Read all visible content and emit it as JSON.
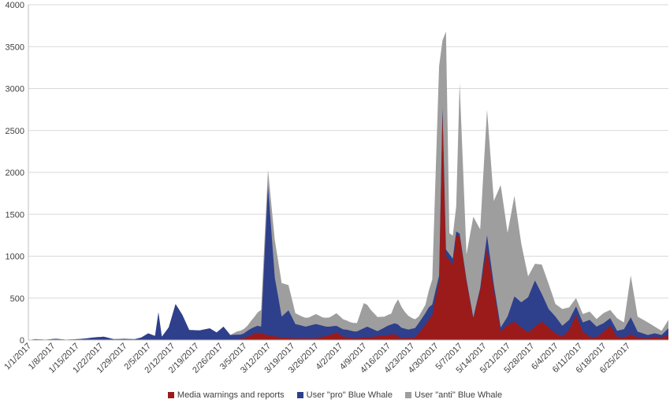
{
  "chart_data": {
    "type": "area",
    "stacked": true,
    "ylim": [
      0,
      4000
    ],
    "yticks": [
      0,
      500,
      1000,
      1500,
      2000,
      2500,
      3000,
      3500,
      4000
    ],
    "xlim": [
      "2017-01-01",
      "2017-07-07"
    ],
    "xtick_labels": [
      "1/1/2017",
      "1/8/2017",
      "1/15/2017",
      "1/22/2017",
      "1/29/2017",
      "2/5/2017",
      "2/12/2017",
      "2/19/2017",
      "2/26/2017",
      "3/5/2017",
      "3/12/2017",
      "3/19/2017",
      "3/26/2017",
      "4/2/2017",
      "4/9/2017",
      "4/16/2017",
      "4/23/2017",
      "4/30/2017",
      "5/7/2017",
      "5/14/2017",
      "5/21/2017",
      "5/28/2017",
      "6/4/2017",
      "6/11/2017",
      "6/18/2017",
      "6/25/2017"
    ],
    "xtick_dates": [
      "2017-01-01",
      "2017-01-08",
      "2017-01-15",
      "2017-01-22",
      "2017-01-29",
      "2017-02-05",
      "2017-02-12",
      "2017-02-19",
      "2017-02-26",
      "2017-03-05",
      "2017-03-12",
      "2017-03-19",
      "2017-03-26",
      "2017-04-02",
      "2017-04-09",
      "2017-04-16",
      "2017-04-23",
      "2017-04-30",
      "2017-05-07",
      "2017-05-14",
      "2017-05-21",
      "2017-05-28",
      "2017-06-04",
      "2017-06-11",
      "2017-06-18",
      "2017-06-25"
    ],
    "grid": "horizontal",
    "legend_position": "bottom",
    "series": [
      {
        "name": "Media warnings and reports",
        "color": "#9b1b1b",
        "points": [
          [
            "2017-01-01",
            0
          ],
          [
            "2017-03-01",
            0
          ],
          [
            "2017-03-05",
            20
          ],
          [
            "2017-03-07",
            60
          ],
          [
            "2017-03-09",
            90
          ],
          [
            "2017-03-12",
            60
          ],
          [
            "2017-03-16",
            30
          ],
          [
            "2017-03-20",
            20
          ],
          [
            "2017-03-26",
            20
          ],
          [
            "2017-03-30",
            60
          ],
          [
            "2017-04-01",
            90
          ],
          [
            "2017-04-03",
            40
          ],
          [
            "2017-04-06",
            20
          ],
          [
            "2017-04-10",
            30
          ],
          [
            "2017-04-16",
            60
          ],
          [
            "2017-04-18",
            70
          ],
          [
            "2017-04-20",
            20
          ],
          [
            "2017-04-24",
            30
          ],
          [
            "2017-04-27",
            180
          ],
          [
            "2017-04-29",
            300
          ],
          [
            "2017-05-01",
            700
          ],
          [
            "2017-05-02",
            2700
          ],
          [
            "2017-05-03",
            1000
          ],
          [
            "2017-05-05",
            900
          ],
          [
            "2017-05-06",
            1250
          ],
          [
            "2017-05-07",
            1250
          ],
          [
            "2017-05-09",
            700
          ],
          [
            "2017-05-11",
            250
          ],
          [
            "2017-05-13",
            600
          ],
          [
            "2017-05-15",
            1100
          ],
          [
            "2017-05-17",
            600
          ],
          [
            "2017-05-19",
            100
          ],
          [
            "2017-05-21",
            180
          ],
          [
            "2017-05-23",
            220
          ],
          [
            "2017-05-25",
            150
          ],
          [
            "2017-05-27",
            90
          ],
          [
            "2017-05-29",
            160
          ],
          [
            "2017-05-31",
            220
          ],
          [
            "2017-06-02",
            150
          ],
          [
            "2017-06-04",
            80
          ],
          [
            "2017-06-06",
            40
          ],
          [
            "2017-06-08",
            120
          ],
          [
            "2017-06-10",
            300
          ],
          [
            "2017-06-12",
            100
          ],
          [
            "2017-06-14",
            40
          ],
          [
            "2017-06-16",
            30
          ],
          [
            "2017-06-18",
            100
          ],
          [
            "2017-06-20",
            170
          ],
          [
            "2017-06-22",
            40
          ],
          [
            "2017-06-24",
            30
          ],
          [
            "2017-06-26",
            70
          ],
          [
            "2017-06-28",
            30
          ],
          [
            "2017-07-01",
            20
          ],
          [
            "2017-07-03",
            40
          ],
          [
            "2017-07-05",
            30
          ],
          [
            "2017-07-07",
            60
          ]
        ]
      },
      {
        "name": "User \"pro\" Blue Whale",
        "color": "#2e3f8c",
        "points": [
          [
            "2017-01-01",
            0
          ],
          [
            "2017-01-03",
            10
          ],
          [
            "2017-01-06",
            5
          ],
          [
            "2017-01-09",
            15
          ],
          [
            "2017-01-12",
            5
          ],
          [
            "2017-01-15",
            10
          ],
          [
            "2017-01-18",
            20
          ],
          [
            "2017-01-20",
            30
          ],
          [
            "2017-01-23",
            40
          ],
          [
            "2017-01-26",
            10
          ],
          [
            "2017-01-29",
            15
          ],
          [
            "2017-02-01",
            10
          ],
          [
            "2017-02-03",
            30
          ],
          [
            "2017-02-05",
            80
          ],
          [
            "2017-02-07",
            50
          ],
          [
            "2017-02-08",
            330
          ],
          [
            "2017-02-09",
            40
          ],
          [
            "2017-02-11",
            150
          ],
          [
            "2017-02-13",
            430
          ],
          [
            "2017-02-15",
            300
          ],
          [
            "2017-02-17",
            120
          ],
          [
            "2017-02-20",
            115
          ],
          [
            "2017-02-23",
            140
          ],
          [
            "2017-02-25",
            90
          ],
          [
            "2017-02-27",
            160
          ],
          [
            "2017-03-01",
            60
          ],
          [
            "2017-03-04",
            50
          ],
          [
            "2017-03-06",
            70
          ],
          [
            "2017-03-08",
            80
          ],
          [
            "2017-03-10",
            80
          ],
          [
            "2017-03-12",
            1780
          ],
          [
            "2017-03-14",
            700
          ],
          [
            "2017-03-16",
            250
          ],
          [
            "2017-03-18",
            330
          ],
          [
            "2017-03-20",
            170
          ],
          [
            "2017-03-23",
            140
          ],
          [
            "2017-03-26",
            170
          ],
          [
            "2017-03-29",
            110
          ],
          [
            "2017-04-01",
            80
          ],
          [
            "2017-04-04",
            90
          ],
          [
            "2017-04-07",
            80
          ],
          [
            "2017-04-10",
            130
          ],
          [
            "2017-04-13",
            60
          ],
          [
            "2017-04-16",
            110
          ],
          [
            "2017-04-19",
            140
          ],
          [
            "2017-04-22",
            100
          ],
          [
            "2017-04-25",
            120
          ],
          [
            "2017-04-28",
            150
          ],
          [
            "2017-05-01",
            70
          ],
          [
            "2017-05-03",
            80
          ],
          [
            "2017-05-05",
            70
          ],
          [
            "2017-05-07",
            20
          ],
          [
            "2017-05-09",
            20
          ],
          [
            "2017-05-11",
            20
          ],
          [
            "2017-05-13",
            20
          ],
          [
            "2017-05-15",
            150
          ],
          [
            "2017-05-17",
            60
          ],
          [
            "2017-05-19",
            50
          ],
          [
            "2017-05-21",
            100
          ],
          [
            "2017-05-23",
            300
          ],
          [
            "2017-05-25",
            300
          ],
          [
            "2017-05-27",
            420
          ],
          [
            "2017-05-29",
            550
          ],
          [
            "2017-05-31",
            330
          ],
          [
            "2017-06-02",
            220
          ],
          [
            "2017-06-04",
            200
          ],
          [
            "2017-06-06",
            130
          ],
          [
            "2017-06-08",
            120
          ],
          [
            "2017-06-10",
            100
          ],
          [
            "2017-06-12",
            110
          ],
          [
            "2017-06-14",
            200
          ],
          [
            "2017-06-16",
            130
          ],
          [
            "2017-06-18",
            100
          ],
          [
            "2017-06-20",
            90
          ],
          [
            "2017-06-22",
            70
          ],
          [
            "2017-06-24",
            100
          ],
          [
            "2017-06-26",
            200
          ],
          [
            "2017-06-28",
            70
          ],
          [
            "2017-07-01",
            40
          ],
          [
            "2017-07-03",
            40
          ],
          [
            "2017-07-05",
            30
          ],
          [
            "2017-07-07",
            80
          ]
        ]
      },
      {
        "name": "User \"anti\" Blue Whale",
        "color": "#9e9e9e",
        "points": [
          [
            "2017-01-01",
            0
          ],
          [
            "2017-03-01",
            0
          ],
          [
            "2017-03-03",
            40
          ],
          [
            "2017-03-06",
            60
          ],
          [
            "2017-03-08",
            120
          ],
          [
            "2017-03-10",
            200
          ],
          [
            "2017-03-12",
            190
          ],
          [
            "2017-03-14",
            450
          ],
          [
            "2017-03-16",
            400
          ],
          [
            "2017-03-18",
            300
          ],
          [
            "2017-03-20",
            130
          ],
          [
            "2017-03-22",
            110
          ],
          [
            "2017-03-24",
            100
          ],
          [
            "2017-03-26",
            120
          ],
          [
            "2017-03-28",
            100
          ],
          [
            "2017-03-30",
            110
          ],
          [
            "2017-04-01",
            150
          ],
          [
            "2017-04-03",
            120
          ],
          [
            "2017-04-05",
            100
          ],
          [
            "2017-04-07",
            100
          ],
          [
            "2017-04-09",
            300
          ],
          [
            "2017-04-11",
            220
          ],
          [
            "2017-04-13",
            170
          ],
          [
            "2017-04-15",
            130
          ],
          [
            "2017-04-17",
            130
          ],
          [
            "2017-04-19",
            300
          ],
          [
            "2017-04-21",
            200
          ],
          [
            "2017-04-23",
            130
          ],
          [
            "2017-04-25",
            80
          ],
          [
            "2017-04-27",
            100
          ],
          [
            "2017-04-29",
            300
          ],
          [
            "2017-05-01",
            2500
          ],
          [
            "2017-05-02",
            800
          ],
          [
            "2017-05-03",
            2600
          ],
          [
            "2017-05-04",
            250
          ],
          [
            "2017-05-06",
            300
          ],
          [
            "2017-05-07",
            1800
          ],
          [
            "2017-05-09",
            300
          ],
          [
            "2017-05-11",
            1200
          ],
          [
            "2017-05-13",
            700
          ],
          [
            "2017-05-15",
            1500
          ],
          [
            "2017-05-17",
            1000
          ],
          [
            "2017-05-19",
            1700
          ],
          [
            "2017-05-21",
            1000
          ],
          [
            "2017-05-23",
            1200
          ],
          [
            "2017-05-25",
            700
          ],
          [
            "2017-05-27",
            250
          ],
          [
            "2017-05-29",
            200
          ],
          [
            "2017-05-31",
            350
          ],
          [
            "2017-06-02",
            300
          ],
          [
            "2017-06-04",
            150
          ],
          [
            "2017-06-06",
            200
          ],
          [
            "2017-06-08",
            150
          ],
          [
            "2017-06-10",
            100
          ],
          [
            "2017-06-12",
            100
          ],
          [
            "2017-06-14",
            100
          ],
          [
            "2017-06-16",
            90
          ],
          [
            "2017-06-18",
            120
          ],
          [
            "2017-06-20",
            100
          ],
          [
            "2017-06-22",
            150
          ],
          [
            "2017-06-24",
            80
          ],
          [
            "2017-06-26",
            500
          ],
          [
            "2017-06-28",
            180
          ],
          [
            "2017-07-01",
            150
          ],
          [
            "2017-07-03",
            80
          ],
          [
            "2017-07-05",
            50
          ],
          [
            "2017-07-07",
            100
          ]
        ]
      }
    ]
  }
}
